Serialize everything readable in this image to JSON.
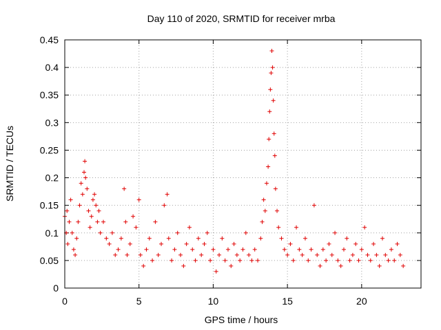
{
  "chart_data": {
    "type": "scatter",
    "title": "Day 110 of 2020, SRMTID for receiver mrba",
    "xlabel": "GPS time / hours",
    "ylabel": "SRMTID / TECUs",
    "xlim": [
      0,
      24
    ],
    "ylim": [
      0,
      0.45
    ],
    "xticks": [
      0,
      5,
      10,
      15,
      20
    ],
    "yticks": [
      0,
      0.05,
      0.1,
      0.15,
      0.2,
      0.25,
      0.3,
      0.35,
      0.4,
      0.45
    ],
    "grid": true,
    "marker": "+",
    "color": "#e00000",
    "series": [
      {
        "name": "SRMTID",
        "points": [
          [
            0.0,
            0.13
          ],
          [
            0.1,
            0.1
          ],
          [
            0.15,
            0.14
          ],
          [
            0.2,
            0.08
          ],
          [
            0.3,
            0.12
          ],
          [
            0.4,
            0.16
          ],
          [
            0.5,
            0.1
          ],
          [
            0.6,
            0.07
          ],
          [
            0.7,
            0.06
          ],
          [
            0.8,
            0.09
          ],
          [
            0.9,
            0.12
          ],
          [
            1.0,
            0.15
          ],
          [
            1.1,
            0.19
          ],
          [
            1.2,
            0.17
          ],
          [
            1.3,
            0.21
          ],
          [
            1.35,
            0.23
          ],
          [
            1.4,
            0.2
          ],
          [
            1.5,
            0.18
          ],
          [
            1.6,
            0.14
          ],
          [
            1.7,
            0.11
          ],
          [
            1.8,
            0.13
          ],
          [
            1.9,
            0.16
          ],
          [
            2.0,
            0.17
          ],
          [
            2.1,
            0.15
          ],
          [
            2.2,
            0.12
          ],
          [
            2.3,
            0.14
          ],
          [
            2.4,
            0.1
          ],
          [
            2.6,
            0.12
          ],
          [
            2.8,
            0.09
          ],
          [
            3.0,
            0.08
          ],
          [
            3.2,
            0.1
          ],
          [
            3.4,
            0.06
          ],
          [
            3.6,
            0.07
          ],
          [
            3.8,
            0.09
          ],
          [
            4.0,
            0.18
          ],
          [
            4.1,
            0.12
          ],
          [
            4.2,
            0.06
          ],
          [
            4.4,
            0.08
          ],
          [
            4.6,
            0.13
          ],
          [
            4.8,
            0.11
          ],
          [
            5.0,
            0.16
          ],
          [
            5.1,
            0.06
          ],
          [
            5.3,
            0.04
          ],
          [
            5.5,
            0.07
          ],
          [
            5.7,
            0.09
          ],
          [
            5.9,
            0.05
          ],
          [
            6.1,
            0.12
          ],
          [
            6.3,
            0.06
          ],
          [
            6.5,
            0.08
          ],
          [
            6.7,
            0.15
          ],
          [
            6.9,
            0.17
          ],
          [
            7.0,
            0.09
          ],
          [
            7.2,
            0.05
          ],
          [
            7.4,
            0.07
          ],
          [
            7.6,
            0.1
          ],
          [
            7.8,
            0.06
          ],
          [
            8.0,
            0.04
          ],
          [
            8.2,
            0.08
          ],
          [
            8.4,
            0.11
          ],
          [
            8.6,
            0.07
          ],
          [
            8.8,
            0.05
          ],
          [
            9.0,
            0.09
          ],
          [
            9.2,
            0.06
          ],
          [
            9.4,
            0.08
          ],
          [
            9.6,
            0.1
          ],
          [
            9.8,
            0.05
          ],
          [
            10.0,
            0.07
          ],
          [
            10.2,
            0.03
          ],
          [
            10.4,
            0.06
          ],
          [
            10.6,
            0.09
          ],
          [
            10.8,
            0.05
          ],
          [
            11.0,
            0.07
          ],
          [
            11.2,
            0.04
          ],
          [
            11.4,
            0.08
          ],
          [
            11.6,
            0.06
          ],
          [
            11.8,
            0.05
          ],
          [
            12.0,
            0.07
          ],
          [
            12.2,
            0.1
          ],
          [
            12.4,
            0.06
          ],
          [
            12.6,
            0.05
          ],
          [
            12.8,
            0.07
          ],
          [
            13.0,
            0.05
          ],
          [
            13.2,
            0.09
          ],
          [
            13.3,
            0.12
          ],
          [
            13.4,
            0.16
          ],
          [
            13.5,
            0.14
          ],
          [
            13.6,
            0.19
          ],
          [
            13.7,
            0.22
          ],
          [
            13.75,
            0.27
          ],
          [
            13.8,
            0.32
          ],
          [
            13.85,
            0.36
          ],
          [
            13.9,
            0.39
          ],
          [
            13.95,
            0.43
          ],
          [
            14.0,
            0.4
          ],
          [
            14.05,
            0.34
          ],
          [
            14.1,
            0.28
          ],
          [
            14.15,
            0.24
          ],
          [
            14.2,
            0.18
          ],
          [
            14.3,
            0.14
          ],
          [
            14.4,
            0.11
          ],
          [
            14.6,
            0.09
          ],
          [
            14.8,
            0.07
          ],
          [
            15.0,
            0.06
          ],
          [
            15.2,
            0.08
          ],
          [
            15.4,
            0.05
          ],
          [
            15.6,
            0.11
          ],
          [
            15.8,
            0.07
          ],
          [
            16.0,
            0.06
          ],
          [
            16.2,
            0.09
          ],
          [
            16.4,
            0.05
          ],
          [
            16.6,
            0.07
          ],
          [
            16.8,
            0.15
          ],
          [
            17.0,
            0.06
          ],
          [
            17.2,
            0.04
          ],
          [
            17.4,
            0.07
          ],
          [
            17.6,
            0.05
          ],
          [
            17.8,
            0.08
          ],
          [
            18.0,
            0.06
          ],
          [
            18.2,
            0.1
          ],
          [
            18.4,
            0.05
          ],
          [
            18.6,
            0.04
          ],
          [
            18.8,
            0.07
          ],
          [
            19.0,
            0.09
          ],
          [
            19.2,
            0.05
          ],
          [
            19.4,
            0.06
          ],
          [
            19.6,
            0.08
          ],
          [
            19.8,
            0.05
          ],
          [
            20.0,
            0.07
          ],
          [
            20.2,
            0.11
          ],
          [
            20.4,
            0.06
          ],
          [
            20.6,
            0.05
          ],
          [
            20.8,
            0.08
          ],
          [
            21.0,
            0.06
          ],
          [
            21.2,
            0.04
          ],
          [
            21.4,
            0.09
          ],
          [
            21.6,
            0.06
          ],
          [
            21.8,
            0.05
          ],
          [
            22.0,
            0.07
          ],
          [
            22.2,
            0.05
          ],
          [
            22.4,
            0.08
          ],
          [
            22.6,
            0.06
          ],
          [
            22.8,
            0.04
          ]
        ]
      }
    ]
  }
}
